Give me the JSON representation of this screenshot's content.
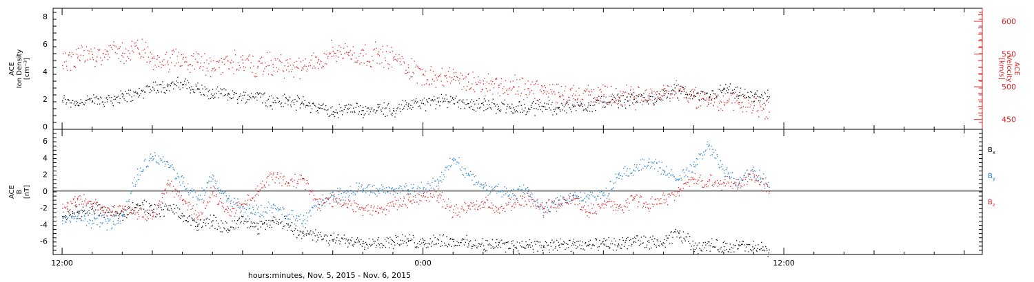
{
  "xaxis": {
    "label": "hours:minutes, Nov.  5, 2015 - Nov.  6, 2015",
    "range_hours": [
      11.7,
      42.6
    ],
    "ticks": [
      {
        "hour": 12,
        "label": "12:00"
      },
      {
        "hour": 24,
        "label": "0:00"
      },
      {
        "hour": 36,
        "label": "12:00"
      }
    ]
  },
  "chart_data": [
    {
      "type": "scatter",
      "title": "",
      "ylabel_lines": [
        "ACE",
        "Ion Density",
        "[cm⁻³]"
      ],
      "ylim": [
        -0.2,
        8.6
      ],
      "yticks": [
        0,
        2,
        4,
        6,
        8
      ],
      "right_axis": {
        "ylabel_lines": [
          "ACE",
          "Velocity",
          "[km/s]"
        ],
        "ylim": [
          435,
          620
        ],
        "yticks": [
          450,
          500,
          550,
          600
        ],
        "color": "#e02020"
      },
      "series": [
        {
          "axis": "left",
          "color": "#000000",
          "points": [
            [
              12.0,
              1.9
            ],
            [
              12.5,
              1.8
            ],
            [
              13.0,
              1.9
            ],
            [
              13.5,
              2.0
            ],
            [
              14.0,
              2.2
            ],
            [
              14.5,
              2.4
            ],
            [
              15.0,
              2.9
            ],
            [
              15.5,
              3.0
            ],
            [
              16.0,
              3.1
            ],
            [
              16.5,
              2.8
            ],
            [
              17.0,
              2.3
            ],
            [
              17.5,
              2.4
            ],
            [
              18.0,
              2.1
            ],
            [
              18.5,
              2.4
            ],
            [
              19.0,
              1.8
            ],
            [
              19.5,
              1.9
            ],
            [
              20.0,
              1.7
            ],
            [
              20.5,
              1.4
            ],
            [
              21.0,
              1.1
            ],
            [
              21.5,
              1.3
            ],
            [
              22.0,
              1.2
            ],
            [
              22.5,
              1.4
            ],
            [
              23.0,
              1.2
            ],
            [
              23.5,
              1.6
            ],
            [
              24.0,
              1.7
            ],
            [
              24.5,
              1.8
            ],
            [
              25.0,
              2.0
            ],
            [
              25.5,
              1.7
            ],
            [
              26.0,
              1.6
            ],
            [
              26.5,
              1.5
            ],
            [
              27.0,
              1.4
            ],
            [
              27.5,
              1.3
            ],
            [
              28.0,
              1.5
            ],
            [
              28.5,
              1.4
            ],
            [
              29.0,
              1.5
            ],
            [
              29.5,
              1.6
            ],
            [
              30.0,
              1.8
            ],
            [
              30.5,
              1.9
            ],
            [
              31.0,
              2.0
            ],
            [
              31.5,
              2.1
            ],
            [
              32.0,
              2.3
            ],
            [
              32.5,
              2.6
            ],
            [
              33.0,
              2.3
            ],
            [
              33.5,
              2.1
            ],
            [
              34.0,
              2.8
            ],
            [
              34.5,
              2.3
            ],
            [
              35.0,
              2.2
            ],
            [
              35.5,
              2.2
            ]
          ]
        },
        {
          "axis": "right",
          "color": "#e02020",
          "points": [
            [
              12.0,
              533
            ],
            [
              12.5,
              545
            ],
            [
              13.0,
              550
            ],
            [
              13.5,
              555
            ],
            [
              14.0,
              552
            ],
            [
              14.5,
              560
            ],
            [
              15.0,
              545
            ],
            [
              15.5,
              540
            ],
            [
              16.0,
              543
            ],
            [
              16.5,
              538
            ],
            [
              17.0,
              528
            ],
            [
              17.5,
              540
            ],
            [
              18.0,
              537
            ],
            [
              18.5,
              532
            ],
            [
              19.0,
              535
            ],
            [
              19.5,
              532
            ],
            [
              20.0,
              528
            ],
            [
              20.5,
              540
            ],
            [
              21.0,
              555
            ],
            [
              21.5,
              553
            ],
            [
              22.0,
              548
            ],
            [
              22.5,
              550
            ],
            [
              23.0,
              545
            ],
            [
              23.5,
              530
            ],
            [
              24.0,
              520
            ],
            [
              24.5,
              516
            ],
            [
              25.0,
              512
            ],
            [
              25.5,
              508
            ],
            [
              26.0,
              505
            ],
            [
              26.5,
              503
            ],
            [
              27.0,
              500
            ],
            [
              27.5,
              498
            ],
            [
              28.0,
              495
            ],
            [
              28.5,
              492
            ],
            [
              29.0,
              490
            ],
            [
              29.5,
              488
            ],
            [
              30.0,
              486
            ],
            [
              30.5,
              485
            ],
            [
              31.0,
              484
            ],
            [
              31.5,
              487
            ],
            [
              32.0,
              490
            ],
            [
              32.5,
              497
            ],
            [
              33.0,
              485
            ],
            [
              33.5,
              480
            ],
            [
              34.0,
              477
            ],
            [
              34.5,
              477
            ],
            [
              35.0,
              472
            ],
            [
              35.5,
              462
            ]
          ]
        }
      ]
    },
    {
      "type": "scatter",
      "title": "",
      "ylabel_lines": [
        "ACE",
        "B",
        "[nT]"
      ],
      "ylim": [
        -7.6,
        7.4
      ],
      "yticks": [
        -6,
        -4,
        -2,
        0,
        2,
        4,
        6
      ],
      "zero_line": true,
      "series": [
        {
          "name": "B_x",
          "color": "#000000",
          "points": [
            [
              12.0,
              -3.0
            ],
            [
              12.5,
              -2.5
            ],
            [
              13.0,
              -2.0
            ],
            [
              13.5,
              -2.5
            ],
            [
              14.0,
              -2.8
            ],
            [
              14.5,
              -1.5
            ],
            [
              15.0,
              -2.5
            ],
            [
              15.5,
              -2.0
            ],
            [
              16.0,
              -3.0
            ],
            [
              16.5,
              -4.0
            ],
            [
              17.0,
              -3.5
            ],
            [
              17.5,
              -4.5
            ],
            [
              18.0,
              -3.0
            ],
            [
              18.5,
              -4.5
            ],
            [
              19.0,
              -3.5
            ],
            [
              19.5,
              -4.0
            ],
            [
              20.0,
              -5.0
            ],
            [
              20.5,
              -5.5
            ],
            [
              21.0,
              -5.8
            ],
            [
              21.5,
              -5.8
            ],
            [
              22.0,
              -6.0
            ],
            [
              22.5,
              -6.2
            ],
            [
              23.0,
              -6.0
            ],
            [
              23.5,
              -6.0
            ],
            [
              24.0,
              -6.1
            ],
            [
              24.5,
              -5.8
            ],
            [
              25.0,
              -6.0
            ],
            [
              25.5,
              -6.2
            ],
            [
              26.0,
              -6.5
            ],
            [
              26.5,
              -6.4
            ],
            [
              27.0,
              -6.5
            ],
            [
              27.5,
              -6.4
            ],
            [
              28.0,
              -6.6
            ],
            [
              28.5,
              -6.5
            ],
            [
              29.0,
              -6.4
            ],
            [
              29.5,
              -6.5
            ],
            [
              30.0,
              -6.3
            ],
            [
              30.5,
              -6.4
            ],
            [
              31.0,
              -6.0
            ],
            [
              31.5,
              -6.1
            ],
            [
              32.0,
              -6.2
            ],
            [
              32.5,
              -5.0
            ],
            [
              33.0,
              -6.5
            ],
            [
              33.5,
              -6.5
            ],
            [
              34.0,
              -6.6
            ],
            [
              34.5,
              -6.5
            ],
            [
              35.0,
              -6.8
            ],
            [
              35.5,
              -7.0
            ]
          ]
        },
        {
          "name": "B_y",
          "color": "#1f7fd4",
          "points": [
            [
              12.0,
              -3.5
            ],
            [
              12.5,
              -3.0
            ],
            [
              13.0,
              -3.5
            ],
            [
              13.5,
              -3.8
            ],
            [
              14.0,
              -3.0
            ],
            [
              14.5,
              2.0
            ],
            [
              15.0,
              4.2
            ],
            [
              15.5,
              3.5
            ],
            [
              16.0,
              1.0
            ],
            [
              16.5,
              -1.0
            ],
            [
              17.0,
              1.5
            ],
            [
              17.5,
              -1.0
            ],
            [
              18.0,
              -2.0
            ],
            [
              18.5,
              -2.5
            ],
            [
              19.0,
              -2.0
            ],
            [
              19.5,
              -2.8
            ],
            [
              20.0,
              -3.5
            ],
            [
              20.5,
              -1.5
            ],
            [
              21.0,
              -0.5
            ],
            [
              21.5,
              0.0
            ],
            [
              22.0,
              0.3
            ],
            [
              22.5,
              0.0
            ],
            [
              23.0,
              0.2
            ],
            [
              23.5,
              0.2
            ],
            [
              24.0,
              0.3
            ],
            [
              24.5,
              1.0
            ],
            [
              25.0,
              4.0
            ],
            [
              25.5,
              2.0
            ],
            [
              26.0,
              0.5
            ],
            [
              26.5,
              0.0
            ],
            [
              27.0,
              -0.5
            ],
            [
              27.5,
              0.2
            ],
            [
              28.0,
              -2.5
            ],
            [
              28.5,
              -1.0
            ],
            [
              29.0,
              -0.5
            ],
            [
              29.5,
              -0.8
            ],
            [
              30.0,
              -0.5
            ],
            [
              30.5,
              2.0
            ],
            [
              31.0,
              2.5
            ],
            [
              31.5,
              3.5
            ],
            [
              32.0,
              2.5
            ],
            [
              32.5,
              1.5
            ],
            [
              33.0,
              3.0
            ],
            [
              33.5,
              5.5
            ],
            [
              34.0,
              2.5
            ],
            [
              34.5,
              1.0
            ],
            [
              35.0,
              2.5
            ],
            [
              35.5,
              0.5
            ]
          ]
        },
        {
          "name": "B_z",
          "color": "#e02020",
          "points": [
            [
              12.0,
              -2.0
            ],
            [
              12.5,
              -1.0
            ],
            [
              13.0,
              -1.5
            ],
            [
              13.5,
              -2.5
            ],
            [
              14.0,
              -2.0
            ],
            [
              14.5,
              -2.5
            ],
            [
              15.0,
              -3.0
            ],
            [
              15.5,
              1.0
            ],
            [
              16.0,
              -1.0
            ],
            [
              16.5,
              -3.0
            ],
            [
              17.0,
              0.0
            ],
            [
              17.5,
              -2.5
            ],
            [
              18.0,
              -1.5
            ],
            [
              18.5,
              0.0
            ],
            [
              19.0,
              2.0
            ],
            [
              19.5,
              1.0
            ],
            [
              20.0,
              1.5
            ],
            [
              20.5,
              -1.5
            ],
            [
              21.0,
              -1.0
            ],
            [
              21.5,
              -1.5
            ],
            [
              22.0,
              -2.0
            ],
            [
              22.5,
              -2.5
            ],
            [
              23.0,
              -1.5
            ],
            [
              23.5,
              -1.0
            ],
            [
              24.0,
              -0.5
            ],
            [
              24.5,
              -0.5
            ],
            [
              25.0,
              -2.5
            ],
            [
              25.5,
              -2.0
            ],
            [
              26.0,
              -1.5
            ],
            [
              26.5,
              -2.0
            ],
            [
              27.0,
              -1.5
            ],
            [
              27.5,
              -1.0
            ],
            [
              28.0,
              -2.0
            ],
            [
              28.5,
              -1.5
            ],
            [
              29.0,
              -1.0
            ],
            [
              29.5,
              -2.5
            ],
            [
              30.0,
              -1.5
            ],
            [
              30.5,
              -2.0
            ],
            [
              31.0,
              -1.0
            ],
            [
              31.5,
              -1.5
            ],
            [
              32.0,
              -1.0
            ],
            [
              32.5,
              0.0
            ],
            [
              33.0,
              1.5
            ],
            [
              33.5,
              1.2
            ],
            [
              34.0,
              1.0
            ],
            [
              34.5,
              1.0
            ],
            [
              35.0,
              2.0
            ],
            [
              35.5,
              0.0
            ]
          ]
        }
      ]
    }
  ]
}
